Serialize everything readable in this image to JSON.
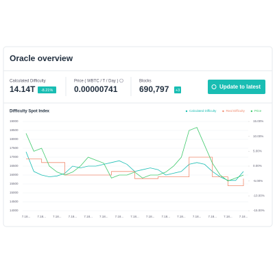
{
  "header": {
    "title": "Oracle overview"
  },
  "stats": [
    {
      "label": "Calculated Difficulty",
      "value": "14.14T",
      "badge": "-8.21%"
    },
    {
      "label": "Price ( WBTC / T / Day )",
      "value": "0.00000741"
    },
    {
      "label": "Blocks",
      "value": "690,797",
      "badge": "+3"
    }
  ],
  "button": {
    "label": "Update to latest"
  },
  "chart_data": {
    "type": "line",
    "title": "Difficulty Spot Index",
    "categories": [
      "7.18...",
      null,
      "7.18...",
      null,
      "7.18...",
      null,
      "7.18...",
      null,
      "7.18...",
      null,
      "7.18...",
      null,
      "7.18...",
      null,
      "7.18...",
      null,
      "7.18...",
      null,
      "7.18...",
      null,
      "7.18...",
      null,
      "7.18...",
      null,
      "7.18...",
      null,
      "7.18...",
      null,
      "7.18..."
    ],
    "series": [
      {
        "name": "Calculated Difficulty",
        "color": "#19bdb3",
        "values": [
          17300,
          16200,
          16000,
          15900,
          15950,
          16100,
          16500,
          16400,
          16500,
          16500,
          16600,
          16700,
          16800,
          16600,
          16200,
          16300,
          16400,
          16300,
          16000,
          16100,
          16200,
          16600,
          16700,
          16600,
          16200,
          15900,
          15700,
          15700,
          16200
        ]
      },
      {
        "name": "Real Difficulty",
        "color": "#f08a6e",
        "step": true,
        "values": [
          16900,
          16900,
          16700,
          16700,
          16700,
          16000,
          16000,
          16000,
          16000,
          16000,
          16000,
          16200,
          16200,
          16200,
          15800,
          15800,
          15800,
          15900,
          15900,
          15900,
          15900,
          17000,
          17000,
          17000,
          15900,
          15900,
          15400,
          15400,
          15800
        ]
      },
      {
        "name": "Price",
        "color": "#3ec96b",
        "axis": "y2",
        "values": [
          11,
          5,
          6,
          0,
          -2,
          -3,
          -2,
          0,
          3,
          2,
          1,
          -4,
          -3,
          -3,
          -2,
          -4,
          -3,
          -3,
          -2,
          0,
          3,
          12,
          13,
          7,
          1,
          -3,
          -5,
          -4,
          -3
        ]
      }
    ],
    "ylim": [
      14000,
      19000
    ],
    "yticks": [
      19000,
      18500,
      18000,
      17500,
      17000,
      16500,
      16000,
      15500,
      15000,
      14500,
      14000
    ],
    "y2lim": [
      -15,
      15
    ],
    "y2ticks": [
      {
        "value": 15,
        "label": "15.00%"
      },
      {
        "value": 10,
        "label": "10.00%"
      },
      {
        "value": 5,
        "label": "5.00%"
      },
      {
        "value": 0,
        "label": "0.00%"
      },
      {
        "value": -5,
        "label": "-5.00%"
      },
      {
        "value": -10,
        "label": "-10.00%"
      },
      {
        "value": -15,
        "label": "-15.00%"
      }
    ],
    "grid": true
  }
}
